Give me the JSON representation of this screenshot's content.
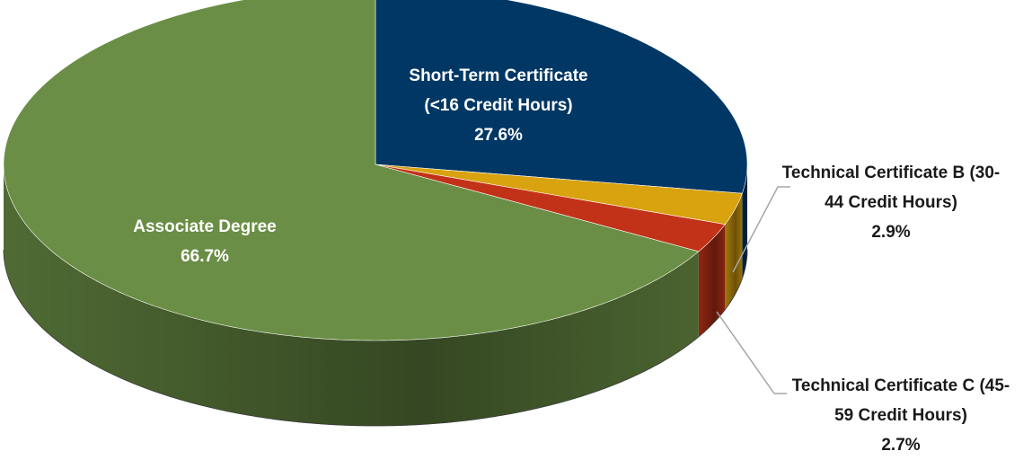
{
  "chart_data": {
    "type": "pie",
    "categories": [
      "Short-Term Certificate (<16 Credit Hours)",
      "Technical Certificate B (30-44 Credit Hours)",
      "Technical Certificate C (45-59 Credit Hours)",
      "Associate Degree"
    ],
    "values": [
      27.6,
      2.9,
      2.7,
      66.7
    ],
    "value_labels": [
      "27.6%",
      "2.9%",
      "2.7%",
      "66.7%"
    ],
    "colors": [
      "#003764",
      "#d9a20f",
      "#c23218",
      "#6a8e45"
    ]
  }
}
